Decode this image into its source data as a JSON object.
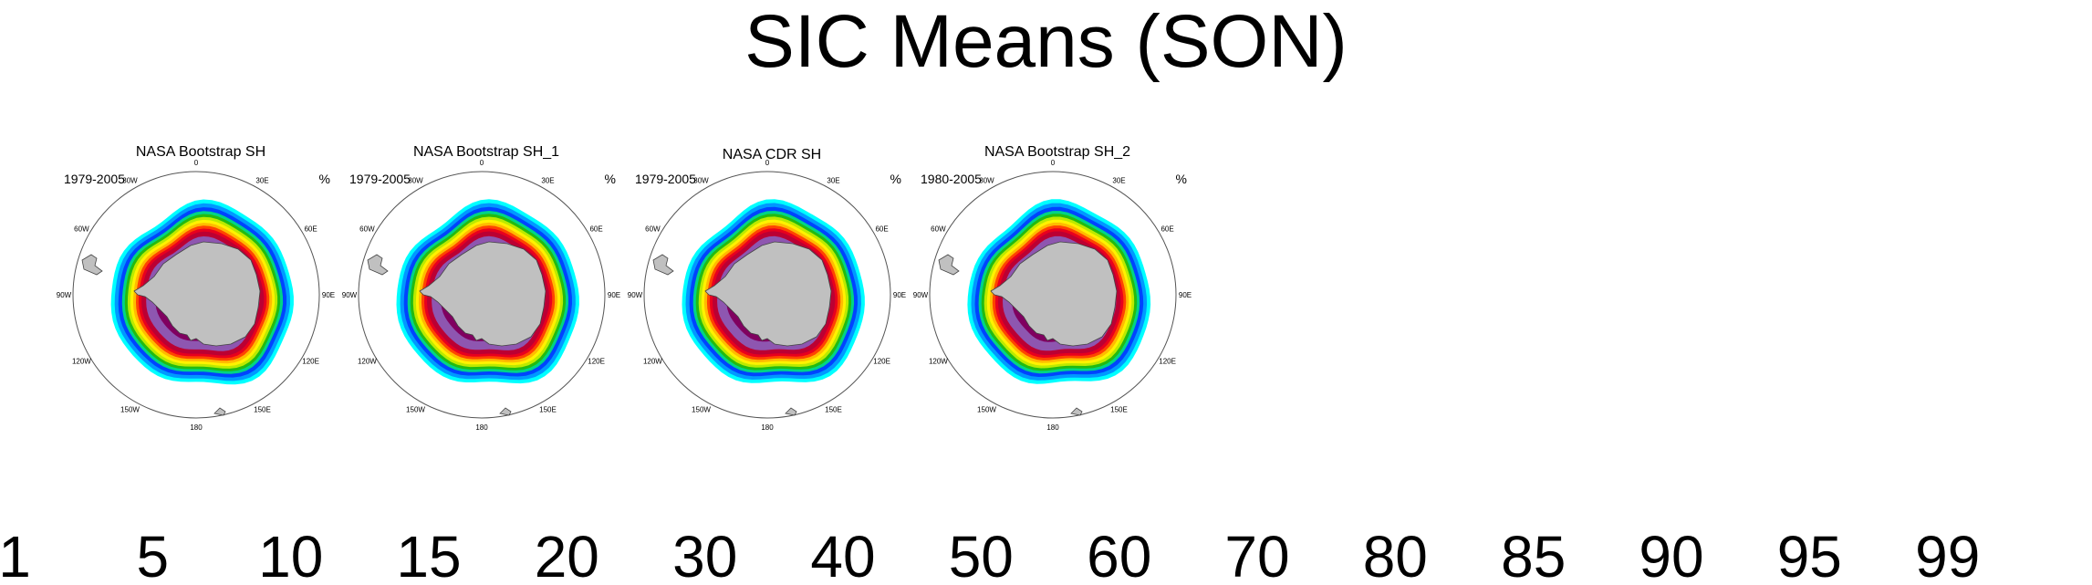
{
  "title": "SIC Means (SON)",
  "panels": [
    {
      "title": "NASA Bootstrap SH",
      "period": "1979-2005",
      "unit": "%"
    },
    {
      "title": "NASA Bootstrap SH_1",
      "period": "1979-2005",
      "unit": "%"
    },
    {
      "title": "NASA CDR SH",
      "period": "1979-2005",
      "unit": "%"
    },
    {
      "title": "NASA Bootstrap SH_2",
      "period": "1980-2005",
      "unit": "%"
    }
  ],
  "longitude_labels": [
    "0",
    "30E",
    "60E",
    "90E",
    "120E",
    "150E",
    "180",
    "150W",
    "120W",
    "90W",
    "60W",
    "30W"
  ],
  "colorbar": {
    "colors": [
      "#00ffff",
      "#0099ff",
      "#0044ff",
      "#0000e0",
      "#00d585",
      "#22bb11",
      "#bbea00",
      "#fff200",
      "#ffbb00",
      "#ff4400",
      "#e8001e",
      "#bb0033",
      "#800060",
      "#8e56b0",
      "#c4a8d8"
    ],
    "labels": [
      "1",
      "5",
      "10",
      "15",
      "20",
      "30",
      "40",
      "50",
      "60",
      "70",
      "80",
      "85",
      "90",
      "95",
      "99"
    ]
  },
  "land_color": "#c0c0c0"
}
